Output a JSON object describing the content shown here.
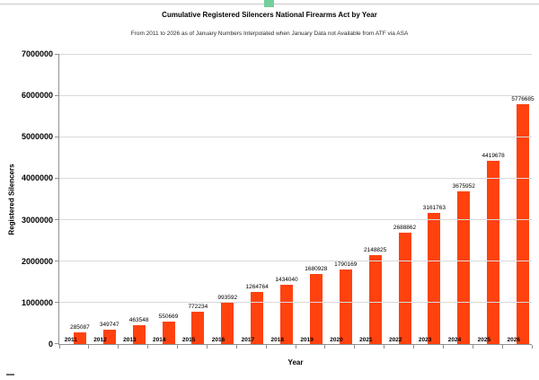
{
  "selection": {
    "handle_color": "#72cf9b",
    "frame_color": "#c9c9c9"
  },
  "chart_data": {
    "type": "bar",
    "title": "Cumulative Registered Silencers National Firearms Act by Year",
    "subtitle": "From 2011 to 2026  as of January Numbers Interpolated when January Data not Available from ATF via ASA",
    "categories": [
      "2011",
      "2012",
      "2013",
      "2014",
      "2015",
      "2016",
      "2017",
      "2018",
      "2019",
      "2020",
      "2021",
      "2022",
      "2023",
      "2024",
      "2025",
      "2026"
    ],
    "values": [
      285087,
      349747,
      463548,
      550669,
      772234,
      993592,
      1264764,
      1434040,
      1680928,
      1790169,
      2148825,
      2688862,
      3161763,
      3675952,
      4419678,
      5776685
    ],
    "xlabel": "Year",
    "ylabel": "Registered Silencers",
    "ylim": [
      0,
      7000000
    ],
    "y_tick_step": 1000000,
    "y_ticks": [
      "0",
      "1000000",
      "2000000",
      "3000000",
      "4000000",
      "5000000",
      "6000000",
      "7000000"
    ],
    "grid": true,
    "legend": "none",
    "data_labels": true,
    "bar_color": "#ff420e"
  }
}
